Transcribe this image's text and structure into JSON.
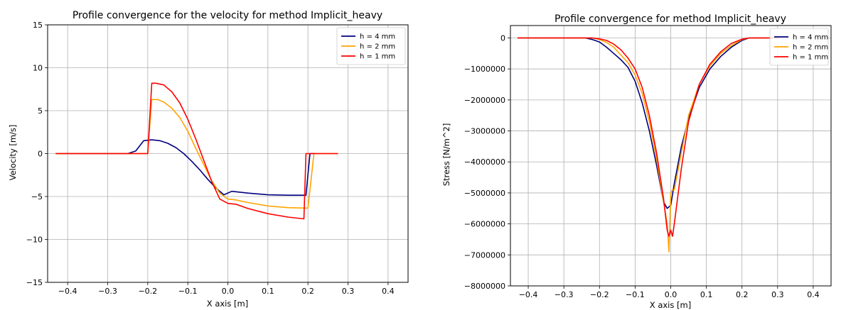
{
  "chart_data": [
    {
      "type": "line",
      "title": "Profile convergence for the velocity for method Implicit_heavy",
      "xlabel": "X axis [m]",
      "ylabel": "Velocity [m/s]",
      "xlim": [
        -0.45,
        0.45
      ],
      "ylim": [
        -15,
        15
      ],
      "xticks": [
        -0.4,
        -0.3,
        -0.2,
        -0.1,
        0.0,
        0.1,
        0.2,
        0.3,
        0.4
      ],
      "xtick_labels": [
        "−0.4",
        "−0.3",
        "−0.2",
        "−0.1",
        "0.0",
        "0.1",
        "0.2",
        "0.3",
        "0.4"
      ],
      "yticks": [
        -15,
        -10,
        -5,
        0,
        5,
        10,
        15
      ],
      "ytick_labels": [
        "−15",
        "−10",
        "−5",
        "0",
        "5",
        "10",
        "15"
      ],
      "grid": true,
      "legend_position": "top-right",
      "series": [
        {
          "name": "h = 4 mm",
          "color": "#00007f",
          "x": [
            -0.43,
            -0.25,
            -0.23,
            -0.21,
            -0.19,
            -0.17,
            -0.15,
            -0.13,
            -0.11,
            -0.09,
            -0.07,
            -0.05,
            -0.03,
            -0.01,
            0.01,
            0.05,
            0.1,
            0.15,
            0.195,
            0.205,
            0.22
          ],
          "y": [
            0,
            0,
            0.3,
            1.5,
            1.6,
            1.5,
            1.2,
            0.7,
            0.0,
            -0.9,
            -1.9,
            -3.0,
            -4.0,
            -4.8,
            -4.4,
            -4.6,
            -4.8,
            -4.85,
            -4.85,
            0,
            0
          ]
        },
        {
          "name": "h = 2 mm",
          "color": "#ffa500",
          "x": [
            -0.43,
            -0.2,
            -0.19,
            -0.175,
            -0.16,
            -0.14,
            -0.12,
            -0.1,
            -0.08,
            -0.06,
            -0.04,
            -0.02,
            0.0,
            0.02,
            0.05,
            0.1,
            0.15,
            0.19,
            0.2,
            0.215,
            0.275
          ],
          "y": [
            0,
            0,
            6.3,
            6.3,
            6.0,
            5.3,
            4.2,
            2.6,
            0.6,
            -1.3,
            -3.2,
            -4.6,
            -5.3,
            -5.4,
            -5.7,
            -6.1,
            -6.3,
            -6.35,
            -6.35,
            0,
            0
          ]
        },
        {
          "name": "h = 1 mm",
          "color": "#ff0000",
          "x": [
            -0.43,
            -0.2,
            -0.19,
            -0.18,
            -0.16,
            -0.14,
            -0.12,
            -0.1,
            -0.08,
            -0.06,
            -0.04,
            -0.02,
            0.0,
            0.02,
            0.05,
            0.1,
            0.15,
            0.19,
            0.195,
            0.275
          ],
          "y": [
            0,
            0,
            8.2,
            8.2,
            8.0,
            7.2,
            5.9,
            4.0,
            1.7,
            -0.8,
            -3.3,
            -5.3,
            -5.8,
            -5.9,
            -6.4,
            -7.0,
            -7.4,
            -7.6,
            0,
            0
          ]
        }
      ]
    },
    {
      "type": "line",
      "title": "Profile convergence for method Implicit_heavy",
      "xlabel": "X axis [m]",
      "ylabel": "Stress [N/m^2]",
      "xlim": [
        -0.45,
        0.45
      ],
      "ylim": [
        -8000000,
        400000
      ],
      "xticks": [
        -0.4,
        -0.3,
        -0.2,
        -0.1,
        0.0,
        0.1,
        0.2,
        0.3,
        0.4
      ],
      "xtick_labels": [
        "−0.4",
        "−0.3",
        "−0.2",
        "−0.1",
        "0.0",
        "0.1",
        "0.2",
        "0.3",
        "0.4"
      ],
      "yticks": [
        0,
        -1000000,
        -2000000,
        -3000000,
        -4000000,
        -5000000,
        -6000000,
        -7000000,
        -8000000
      ],
      "ytick_labels": [
        "0",
        "−1000000",
        "−2000000",
        "−3000000",
        "−4000000",
        "−5000000",
        "−6000000",
        "−7000000",
        "−8000000"
      ],
      "grid": true,
      "legend_position": "top-right",
      "series": [
        {
          "name": "h = 4 mm",
          "color": "#00007f",
          "x": [
            -0.43,
            -0.24,
            -0.22,
            -0.2,
            -0.18,
            -0.16,
            -0.14,
            -0.12,
            -0.1,
            -0.08,
            -0.06,
            -0.04,
            -0.02,
            -0.01,
            0.0,
            0.01,
            0.03,
            0.05,
            0.08,
            0.11,
            0.14,
            0.17,
            0.2,
            0.22,
            0.3
          ],
          "y": [
            0,
            0,
            -50000,
            -130000,
            -300000,
            -500000,
            -700000,
            -950000,
            -1400000,
            -2100000,
            -3000000,
            -4100000,
            -5300000,
            -5500000,
            -5400000,
            -4700000,
            -3500000,
            -2600000,
            -1600000,
            -1000000,
            -600000,
            -300000,
            -80000,
            0,
            0
          ]
        },
        {
          "name": "h = 2 mm",
          "color": "#ffa500",
          "x": [
            -0.43,
            -0.22,
            -0.2,
            -0.18,
            -0.16,
            -0.14,
            -0.12,
            -0.1,
            -0.08,
            -0.06,
            -0.04,
            -0.02,
            -0.01,
            -0.005,
            0.0,
            0.005,
            0.01,
            0.03,
            0.05,
            0.08,
            0.11,
            0.14,
            0.17,
            0.2,
            0.22,
            0.3
          ],
          "y": [
            0,
            0,
            -50000,
            -150000,
            -300000,
            -550000,
            -800000,
            -1200000,
            -1800000,
            -2700000,
            -3900000,
            -5300000,
            -6000000,
            -6900000,
            -5000000,
            -4900000,
            -4900000,
            -3700000,
            -2500000,
            -1500000,
            -900000,
            -500000,
            -250000,
            -50000,
            0,
            0
          ]
        },
        {
          "name": "h = 1 mm",
          "color": "#ff0000",
          "x": [
            -0.43,
            -0.22,
            -0.2,
            -0.18,
            -0.16,
            -0.14,
            -0.12,
            -0.1,
            -0.08,
            -0.06,
            -0.04,
            -0.02,
            -0.01,
            -0.005,
            0.0,
            0.005,
            0.01,
            0.03,
            0.05,
            0.08,
            0.11,
            0.14,
            0.17,
            0.2,
            0.22,
            0.3
          ],
          "y": [
            0,
            0,
            -30000,
            -80000,
            -200000,
            -380000,
            -650000,
            -1000000,
            -1600000,
            -2500000,
            -3700000,
            -5200000,
            -6200000,
            -6400000,
            -6200000,
            -6400000,
            -6000000,
            -4200000,
            -2700000,
            -1500000,
            -850000,
            -450000,
            -180000,
            -40000,
            0,
            0
          ]
        }
      ]
    }
  ]
}
